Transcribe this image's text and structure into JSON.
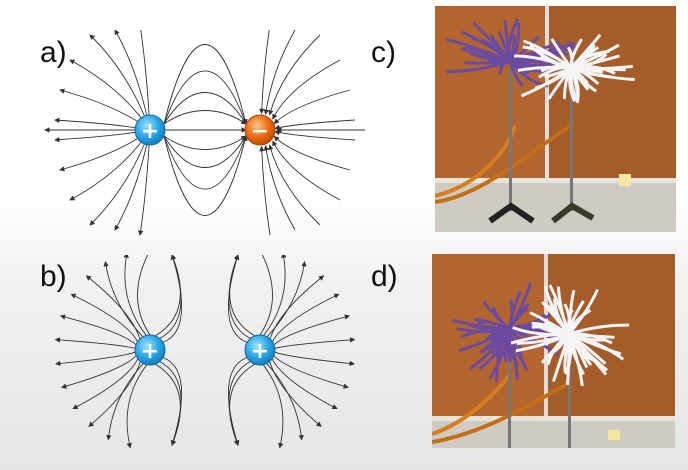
{
  "labels": {
    "a": "a)",
    "b": "b)",
    "c": "c)",
    "d": "d)"
  },
  "diagram_a": {
    "left_charge": "+",
    "right_charge": "−",
    "description_colors": {
      "positive": "#2aa6e6",
      "negative": "#ee6a12"
    }
  },
  "diagram_b": {
    "left_charge": "+",
    "right_charge": "+"
  },
  "photos": {
    "c": "ribbons-opposite-charge",
    "d": "ribbons-same-charge"
  },
  "colors": {
    "wood": "#a35a2a",
    "wall": "#d8d4cc",
    "purple_ribbons": "#6a4ba0",
    "white_ribbons": "#f2f2f2"
  }
}
